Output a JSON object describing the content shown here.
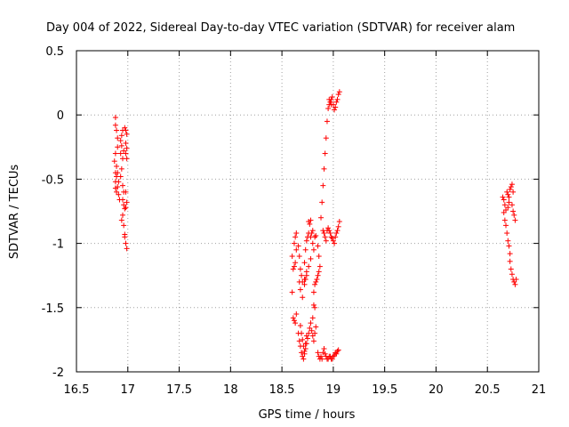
{
  "chart_data": {
    "type": "scatter",
    "title": "Day 004 of 2022, Sidereal Day-to-day VTEC variation (SDTVAR) for receiver alam",
    "xlabel": "GPS time / hours",
    "ylabel": "SDTVAR / TECUs",
    "xlim": [
      16.5,
      21
    ],
    "ylim": [
      -2,
      0.5
    ],
    "xticks": [
      "16.5",
      "17",
      "17.5",
      "18",
      "18.5",
      "19",
      "19.5",
      "20",
      "20.5",
      "21"
    ],
    "yticks": [
      "0.5",
      "0",
      "-0.5",
      "-1",
      "-1.5",
      "-2"
    ],
    "xtick_values": [
      16.5,
      17,
      17.5,
      18,
      18.5,
      19,
      19.5,
      20,
      20.5,
      21
    ],
    "ytick_values": [
      0.5,
      0,
      -0.5,
      -1,
      -1.5,
      -2
    ],
    "grid": true,
    "marker": "plus",
    "color": "#ff0000",
    "series": [
      {
        "name": "SDTVAR",
        "points": [
          [
            16.88,
            -0.02
          ],
          [
            16.88,
            -0.08
          ],
          [
            16.89,
            -0.12
          ],
          [
            16.9,
            -0.18
          ],
          [
            16.9,
            -0.25
          ],
          [
            16.88,
            -0.3
          ],
          [
            16.87,
            -0.36
          ],
          [
            16.89,
            -0.4
          ],
          [
            16.88,
            -0.45
          ],
          [
            16.89,
            -0.48
          ],
          [
            16.88,
            -0.52
          ],
          [
            16.88,
            -0.57
          ],
          [
            16.89,
            -0.6
          ],
          [
            16.9,
            -0.56
          ],
          [
            16.91,
            -0.62
          ],
          [
            16.92,
            -0.66
          ],
          [
            16.91,
            -0.52
          ],
          [
            16.9,
            -0.45
          ],
          [
            16.93,
            -0.2
          ],
          [
            16.94,
            -0.24
          ],
          [
            16.93,
            -0.3
          ],
          [
            16.94,
            -0.16
          ],
          [
            16.95,
            -0.12
          ],
          [
            16.96,
            -0.28
          ],
          [
            16.95,
            -0.34
          ],
          [
            16.94,
            -0.42
          ],
          [
            16.93,
            -0.48
          ],
          [
            16.95,
            -0.55
          ],
          [
            16.96,
            -0.6
          ],
          [
            16.95,
            -0.66
          ],
          [
            16.96,
            -0.7
          ],
          [
            16.97,
            -0.73
          ],
          [
            16.95,
            -0.78
          ],
          [
            16.94,
            -0.82
          ],
          [
            16.96,
            -0.86
          ],
          [
            16.97,
            -0.93
          ],
          [
            16.97,
            -0.95
          ],
          [
            16.98,
            -1.0
          ],
          [
            16.99,
            -1.04
          ],
          [
            16.97,
            -0.1
          ],
          [
            16.98,
            -0.12
          ],
          [
            16.99,
            -0.15
          ],
          [
            16.98,
            -0.22
          ],
          [
            16.99,
            -0.26
          ],
          [
            16.98,
            -0.3
          ],
          [
            16.99,
            -0.34
          ],
          [
            16.98,
            -0.6
          ],
          [
            16.99,
            -0.68
          ],
          [
            16.98,
            -0.72
          ],
          [
            18.6,
            -1.38
          ],
          [
            18.61,
            -1.2
          ],
          [
            18.6,
            -1.1
          ],
          [
            18.62,
            -1.0
          ],
          [
            18.63,
            -0.95
          ],
          [
            18.64,
            -1.05
          ],
          [
            18.63,
            -1.15
          ],
          [
            18.62,
            -1.18
          ],
          [
            18.64,
            -0.92
          ],
          [
            18.61,
            -1.58
          ],
          [
            18.62,
            -1.6
          ],
          [
            18.63,
            -1.62
          ],
          [
            18.64,
            -1.55
          ],
          [
            18.66,
            -1.02
          ],
          [
            18.67,
            -1.1
          ],
          [
            18.68,
            -1.2
          ],
          [
            18.69,
            -1.25
          ],
          [
            18.7,
            -1.3
          ],
          [
            18.72,
            -1.32
          ],
          [
            18.73,
            -1.28
          ],
          [
            18.74,
            -1.22
          ],
          [
            18.72,
            -1.15
          ],
          [
            18.73,
            -1.05
          ],
          [
            18.74,
            -0.98
          ],
          [
            18.75,
            -0.95
          ],
          [
            18.76,
            -0.92
          ],
          [
            18.78,
            -0.95
          ],
          [
            18.79,
            -0.92
          ],
          [
            18.8,
            -0.9
          ],
          [
            18.76,
            -0.83
          ],
          [
            18.77,
            -0.85
          ],
          [
            18.78,
            -0.82
          ],
          [
            18.67,
            -1.3
          ],
          [
            18.68,
            -1.36
          ],
          [
            18.7,
            -1.42
          ],
          [
            18.72,
            -1.28
          ],
          [
            18.74,
            -1.25
          ],
          [
            18.76,
            -1.18
          ],
          [
            18.78,
            -1.12
          ],
          [
            18.66,
            -1.7
          ],
          [
            18.67,
            -1.76
          ],
          [
            18.68,
            -1.8
          ],
          [
            18.69,
            -1.85
          ],
          [
            18.7,
            -1.88
          ],
          [
            18.71,
            -1.9
          ],
          [
            18.72,
            -1.86
          ],
          [
            18.73,
            -1.82
          ],
          [
            18.74,
            -1.78
          ],
          [
            18.75,
            -1.74
          ],
          [
            18.76,
            -1.7
          ],
          [
            18.77,
            -1.66
          ],
          [
            18.78,
            -1.62
          ],
          [
            18.79,
            -1.68
          ],
          [
            18.8,
            -1.72
          ],
          [
            18.81,
            -1.76
          ],
          [
            18.82,
            -1.7
          ],
          [
            18.83,
            -1.65
          ],
          [
            18.8,
            -1.58
          ],
          [
            18.81,
            -1.48
          ],
          [
            18.82,
            -1.5
          ],
          [
            18.68,
            -1.64
          ],
          [
            18.69,
            -1.7
          ],
          [
            18.7,
            -1.75
          ],
          [
            18.71,
            -1.8
          ],
          [
            18.72,
            -1.84
          ],
          [
            18.73,
            -1.78
          ],
          [
            18.74,
            -1.72
          ],
          [
            18.81,
            -1.38
          ],
          [
            18.82,
            -1.32
          ],
          [
            18.83,
            -1.3
          ],
          [
            18.84,
            -1.28
          ],
          [
            18.85,
            -1.25
          ],
          [
            18.86,
            -1.22
          ],
          [
            18.87,
            -1.18
          ],
          [
            18.86,
            -1.1
          ],
          [
            18.85,
            -1.02
          ],
          [
            18.8,
            -1.0
          ],
          [
            18.81,
            -1.05
          ],
          [
            18.82,
            -0.95
          ],
          [
            18.83,
            -0.94
          ],
          [
            18.88,
            -0.8
          ],
          [
            18.89,
            -0.68
          ],
          [
            18.9,
            -0.55
          ],
          [
            18.91,
            -0.42
          ],
          [
            18.92,
            -0.3
          ],
          [
            18.93,
            -0.18
          ],
          [
            18.94,
            -0.05
          ],
          [
            18.95,
            0.05
          ],
          [
            18.96,
            0.08
          ],
          [
            18.97,
            0.1
          ],
          [
            18.98,
            0.12
          ],
          [
            18.99,
            0.14
          ],
          [
            19.0,
            0.08
          ],
          [
            19.01,
            0.04
          ],
          [
            19.02,
            0.06
          ],
          [
            19.03,
            0.1
          ],
          [
            19.04,
            0.12
          ],
          [
            19.05,
            0.16
          ],
          [
            19.06,
            0.18
          ],
          [
            18.96,
            0.12
          ],
          [
            18.98,
            0.08
          ],
          [
            18.9,
            -0.9
          ],
          [
            18.91,
            -0.92
          ],
          [
            18.92,
            -0.95
          ],
          [
            18.93,
            -0.98
          ],
          [
            18.94,
            -0.9
          ],
          [
            18.95,
            -0.88
          ],
          [
            18.96,
            -0.9
          ],
          [
            18.97,
            -0.92
          ],
          [
            18.98,
            -0.95
          ],
          [
            18.99,
            -0.96
          ],
          [
            19.0,
            -0.98
          ],
          [
            19.01,
            -1.0
          ],
          [
            19.02,
            -0.95
          ],
          [
            19.03,
            -0.92
          ],
          [
            19.04,
            -0.9
          ],
          [
            19.05,
            -0.87
          ],
          [
            19.06,
            -0.83
          ],
          [
            18.85,
            -1.85
          ],
          [
            18.86,
            -1.88
          ],
          [
            18.87,
            -1.9
          ],
          [
            18.88,
            -1.88
          ],
          [
            18.89,
            -1.9
          ],
          [
            18.9,
            -1.85
          ],
          [
            18.91,
            -1.82
          ],
          [
            18.92,
            -1.86
          ],
          [
            18.93,
            -1.88
          ],
          [
            18.94,
            -1.9
          ],
          [
            18.95,
            -1.9
          ],
          [
            18.96,
            -1.88
          ],
          [
            18.97,
            -1.88
          ],
          [
            18.98,
            -1.9
          ],
          [
            18.99,
            -1.9
          ],
          [
            19.0,
            -1.88
          ],
          [
            19.01,
            -1.87
          ],
          [
            19.02,
            -1.85
          ],
          [
            19.03,
            -1.86
          ],
          [
            19.04,
            -1.84
          ],
          [
            19.05,
            -1.83
          ],
          [
            20.65,
            -0.64
          ],
          [
            20.66,
            -0.66
          ],
          [
            20.67,
            -0.7
          ],
          [
            20.68,
            -0.74
          ],
          [
            20.66,
            -0.76
          ],
          [
            20.67,
            -0.82
          ],
          [
            20.68,
            -0.86
          ],
          [
            20.69,
            -0.92
          ],
          [
            20.7,
            -0.98
          ],
          [
            20.71,
            -1.02
          ],
          [
            20.72,
            -1.08
          ],
          [
            20.72,
            -1.14
          ],
          [
            20.73,
            -1.2
          ],
          [
            20.74,
            -1.24
          ],
          [
            20.75,
            -1.28
          ],
          [
            20.76,
            -1.3
          ],
          [
            20.77,
            -1.32
          ],
          [
            20.78,
            -1.28
          ],
          [
            20.69,
            -0.6
          ],
          [
            20.7,
            -0.62
          ],
          [
            20.71,
            -0.64
          ],
          [
            20.72,
            -0.58
          ],
          [
            20.73,
            -0.56
          ],
          [
            20.74,
            -0.54
          ],
          [
            20.75,
            -0.6
          ],
          [
            20.74,
            -0.7
          ],
          [
            20.75,
            -0.75
          ],
          [
            20.76,
            -0.78
          ],
          [
            20.77,
            -0.82
          ],
          [
            20.7,
            -0.72
          ],
          [
            20.71,
            -0.68
          ]
        ]
      }
    ]
  }
}
